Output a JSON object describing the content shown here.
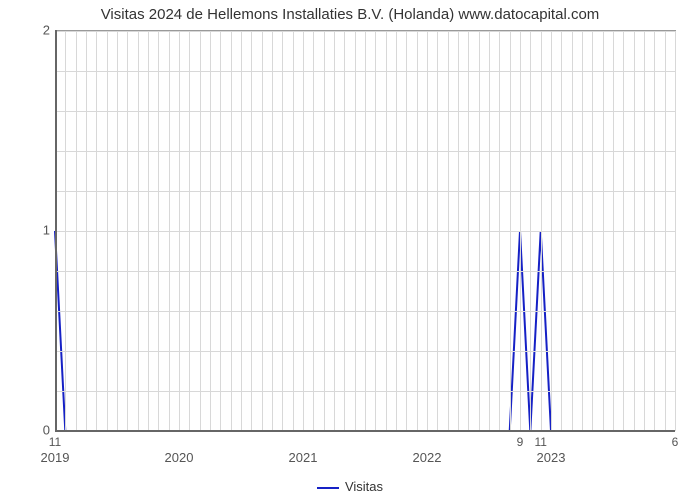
{
  "chart": {
    "type": "line",
    "title": "Visitas 2024 de Hellemons Installaties B.V. (Holanda) www.datocapital.com",
    "title_fontsize": 15,
    "title_color": "#333333",
    "background_color": "#ffffff",
    "plot_border_color": "#999999",
    "axis_color": "#666666",
    "grid_color": "#d8d8d8",
    "font_family": "Arial, sans-serif",
    "tick_fontsize": 13,
    "tick_color": "#555555",
    "x_axis": {
      "min": 2019,
      "max": 2024,
      "major_ticks": [
        2019,
        2020,
        2021,
        2022,
        2023
      ],
      "minor_count_between": 11
    },
    "y_axis": {
      "min": 0,
      "max": 2,
      "ticks": [
        0,
        1,
        2
      ],
      "minor_count_between": 4
    },
    "series": {
      "name": "Visitas",
      "color": "#1621c5",
      "line_width": 2,
      "points": [
        {
          "x": 2019.0,
          "y": 1,
          "label": "11"
        },
        {
          "x": 2019.083,
          "y": 0
        },
        {
          "x": 2022.667,
          "y": 0
        },
        {
          "x": 2022.75,
          "y": 1,
          "label": "9"
        },
        {
          "x": 2022.833,
          "y": 0
        },
        {
          "x": 2022.917,
          "y": 1,
          "label": "11"
        },
        {
          "x": 2023.0,
          "y": 0
        },
        {
          "x": 2024.0,
          "y": 0,
          "label": "6"
        }
      ]
    },
    "legend": {
      "label": "Visitas",
      "line_color": "#1621c5",
      "text_color": "#333333",
      "fontsize": 13
    }
  }
}
